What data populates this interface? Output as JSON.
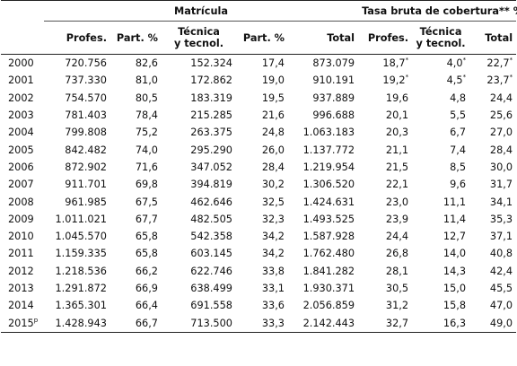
{
  "header": {
    "group_matricula": "Matrícula",
    "group_tasa": "Tasa bruta de cobertura** %",
    "columns": [
      "",
      "Profes.",
      "Part. %",
      "Técnica\ny tecnol.",
      "Part. %",
      "Total",
      "Profes.",
      "Técnica\ny tecnol.",
      "Total"
    ]
  },
  "rows": [
    {
      "year": "2000",
      "mark": "",
      "v": [
        "720.756",
        "82,6",
        "152.324",
        "17,4",
        "873.079",
        "18,7",
        "4,0",
        "22,7"
      ],
      "m": [
        "",
        "",
        "",
        "",
        "",
        "*",
        "*",
        "*"
      ]
    },
    {
      "year": "2001",
      "mark": "",
      "v": [
        "737.330",
        "81,0",
        "172.862",
        "19,0",
        "910.191",
        "19,2",
        "4,5",
        "23,7"
      ],
      "m": [
        "",
        "",
        "",
        "",
        "",
        "*",
        "*",
        "*"
      ]
    },
    {
      "year": "2002",
      "mark": "",
      "v": [
        "754.570",
        "80,5",
        "183.319",
        "19,5",
        "937.889",
        "19,6",
        "4,8",
        "24,4"
      ],
      "m": [
        "",
        "",
        "",
        "",
        "",
        "",
        "",
        ""
      ]
    },
    {
      "year": "2003",
      "mark": "",
      "v": [
        "781.403",
        "78,4",
        "215.285",
        "21,6",
        "996.688",
        "20,1",
        "5,5",
        "25,6"
      ],
      "m": [
        "",
        "",
        "",
        "",
        "",
        "",
        "",
        ""
      ]
    },
    {
      "year": "2004",
      "mark": "",
      "v": [
        "799.808",
        "75,2",
        "263.375",
        "24,8",
        "1.063.183",
        "20,3",
        "6,7",
        "27,0"
      ],
      "m": [
        "",
        "",
        "",
        "",
        "",
        "",
        "",
        ""
      ]
    },
    {
      "year": "2005",
      "mark": "",
      "v": [
        "842.482",
        "74,0",
        "295.290",
        "26,0",
        "1.137.772",
        "21,1",
        "7,4",
        "28,4"
      ],
      "m": [
        "",
        "",
        "",
        "",
        "",
        "",
        "",
        ""
      ]
    },
    {
      "year": "2006",
      "mark": "",
      "v": [
        "872.902",
        "71,6",
        "347.052",
        "28,4",
        "1.219.954",
        "21,5",
        "8,5",
        "30,0"
      ],
      "m": [
        "",
        "",
        "",
        "",
        "",
        "",
        "",
        ""
      ]
    },
    {
      "year": "2007",
      "mark": "",
      "v": [
        "911.701",
        "69,8",
        "394.819",
        "30,2",
        "1.306.520",
        "22,1",
        "9,6",
        "31,7"
      ],
      "m": [
        "",
        "",
        "",
        "",
        "",
        "",
        "",
        ""
      ]
    },
    {
      "year": "2008",
      "mark": "",
      "v": [
        "961.985",
        "67,5",
        "462.646",
        "32,5",
        "1.424.631",
        "23,0",
        "11,1",
        "34,1"
      ],
      "m": [
        "",
        "",
        "",
        "",
        "",
        "",
        "",
        ""
      ]
    },
    {
      "year": "2009",
      "mark": "",
      "v": [
        "1.011.021",
        "67,7",
        "482.505",
        "32,3",
        "1.493.525",
        "23,9",
        "11,4",
        "35,3"
      ],
      "m": [
        "",
        "",
        "",
        "",
        "",
        "",
        "",
        ""
      ]
    },
    {
      "year": "2010",
      "mark": "",
      "v": [
        "1.045.570",
        "65,8",
        "542.358",
        "34,2",
        "1.587.928",
        "24,4",
        "12,7",
        "37,1"
      ],
      "m": [
        "",
        "",
        "",
        "",
        "",
        "",
        "",
        ""
      ]
    },
    {
      "year": "2011",
      "mark": "",
      "v": [
        "1.159.335",
        "65,8",
        "603.145",
        "34,2",
        "1.762.480",
        "26,8",
        "14,0",
        "40,8"
      ],
      "m": [
        "",
        "",
        "",
        "",
        "",
        "",
        "",
        ""
      ]
    },
    {
      "year": "2012",
      "mark": "",
      "v": [
        "1.218.536",
        "66,2",
        "622.746",
        "33,8",
        "1.841.282",
        "28,1",
        "14,3",
        "42,4"
      ],
      "m": [
        "",
        "",
        "",
        "",
        "",
        "",
        "",
        ""
      ]
    },
    {
      "year": "2013",
      "mark": "",
      "v": [
        "1.291.872",
        "66,9",
        "638.499",
        "33,1",
        "1.930.371",
        "30,5",
        "15,0",
        "45,5"
      ],
      "m": [
        "",
        "",
        "",
        "",
        "",
        "",
        "",
        ""
      ]
    },
    {
      "year": "2014",
      "mark": "",
      "v": [
        "1.365.301",
        "66,4",
        "691.558",
        "33,6",
        "2.056.859",
        "31,2",
        "15,8",
        "47,0"
      ],
      "m": [
        "",
        "",
        "",
        "",
        "",
        "",
        "",
        ""
      ]
    },
    {
      "year": "2015",
      "mark": "p",
      "v": [
        "1.428.943",
        "66,7",
        "713.500",
        "33,3",
        "2.142.443",
        "32,7",
        "16,3",
        "49,0"
      ],
      "m": [
        "",
        "",
        "",
        "",
        "",
        "",
        "",
        ""
      ]
    }
  ]
}
